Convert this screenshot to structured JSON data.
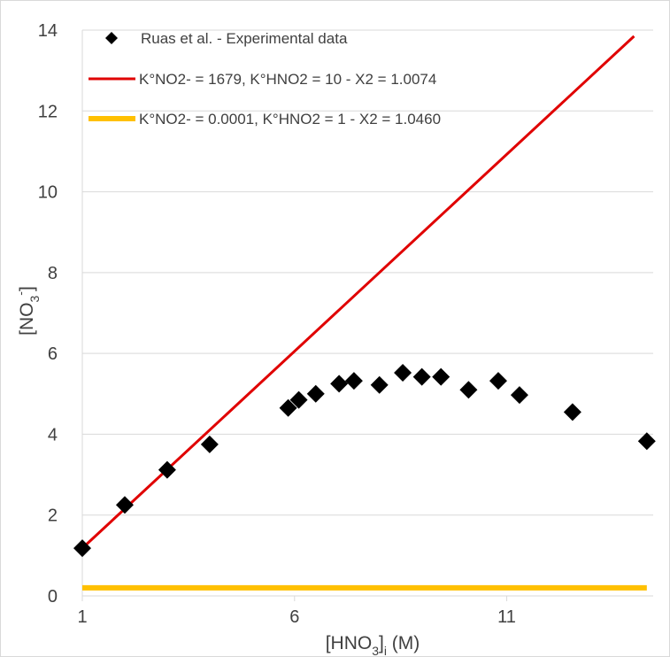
{
  "chart_data": {
    "type": "scatter",
    "xlabel": "[HNO3]i (M)",
    "xlabel_parts": {
      "base": "[HNO",
      "sub1": "3",
      "mid": "]",
      "sub2": "i",
      "tail": " (M)"
    },
    "ylabel": "[NO3-]",
    "ylabel_parts": {
      "base": "[NO",
      "sub": "3",
      "sup": "-",
      "tail": "]"
    },
    "xlim": [
      1,
      14.45
    ],
    "ylim": [
      0,
      14
    ],
    "x_ticks": [
      1,
      6,
      11
    ],
    "y_ticks": [
      0,
      2,
      4,
      6,
      8,
      10,
      12,
      14
    ],
    "grid": "horizontal",
    "legend_position": "top",
    "series": [
      {
        "name": "Ruas et al. - Experimental data",
        "kind": "scatter",
        "marker": "diamond",
        "color": "#000000",
        "points": [
          [
            1.0,
            1.18
          ],
          [
            2.0,
            2.25
          ],
          [
            3.0,
            3.12
          ],
          [
            4.0,
            3.75
          ],
          [
            5.85,
            4.65
          ],
          [
            6.1,
            4.85
          ],
          [
            6.5,
            5.0
          ],
          [
            7.05,
            5.25
          ],
          [
            7.4,
            5.32
          ],
          [
            8.0,
            5.22
          ],
          [
            8.55,
            5.52
          ],
          [
            9.0,
            5.42
          ],
          [
            9.45,
            5.42
          ],
          [
            10.1,
            5.1
          ],
          [
            10.8,
            5.32
          ],
          [
            11.3,
            4.97
          ],
          [
            12.55,
            4.55
          ],
          [
            14.3,
            3.83
          ]
        ]
      },
      {
        "name": "K°NO2- = 1679, K°HNO2 = 10 - X2 = 1.0074",
        "kind": "line",
        "color": "#e00000",
        "points": [
          [
            1.0,
            1.18
          ],
          [
            14.0,
            13.85
          ]
        ]
      },
      {
        "name": "K°NO2- = 0.0001, K°HNO2 = 1 - X2 = 1.0460",
        "kind": "line",
        "color": "#ffc000",
        "points": [
          [
            1.0,
            0.2
          ],
          [
            14.3,
            0.2
          ]
        ]
      }
    ]
  }
}
